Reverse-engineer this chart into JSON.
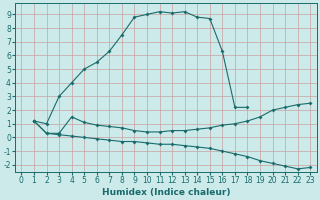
{
  "xlabel": "Humidex (Indice chaleur)",
  "xlim": [
    -0.5,
    23.5
  ],
  "ylim": [
    -2.5,
    9.8
  ],
  "bg_color": "#cceaea",
  "grid_color": "#aacccc",
  "line_color": "#1a6b6b",
  "line1_x": [
    1,
    2,
    3,
    4,
    5,
    6,
    7,
    8,
    9,
    10,
    11,
    12,
    13,
    14,
    15,
    16,
    17,
    18
  ],
  "line1_y": [
    1.2,
    1.0,
    3.0,
    4.0,
    5.0,
    5.5,
    6.3,
    7.5,
    8.8,
    9.0,
    9.2,
    9.1,
    9.2,
    8.8,
    8.7,
    6.3,
    2.2,
    2.2
  ],
  "line2_x": [
    1,
    2,
    3,
    4,
    5,
    6,
    7,
    8,
    9,
    10,
    11,
    12,
    13,
    14,
    15,
    16,
    17,
    18,
    19,
    20,
    21,
    22,
    23
  ],
  "line2_y": [
    1.2,
    0.3,
    0.3,
    1.5,
    1.1,
    0.9,
    0.8,
    0.7,
    0.5,
    0.4,
    0.4,
    0.5,
    0.5,
    0.6,
    0.7,
    0.9,
    1.0,
    1.2,
    1.5,
    2.0,
    2.2,
    2.4,
    2.5
  ],
  "line3_x": [
    1,
    2,
    3,
    4,
    5,
    6,
    7,
    8,
    9,
    10,
    11,
    12,
    13,
    14,
    15,
    16,
    17,
    18,
    19,
    20,
    21,
    22,
    23
  ],
  "line3_y": [
    1.2,
    0.3,
    0.2,
    0.1,
    0.0,
    -0.1,
    -0.2,
    -0.3,
    -0.3,
    -0.4,
    -0.5,
    -0.5,
    -0.6,
    -0.7,
    -0.8,
    -1.0,
    -1.2,
    -1.4,
    -1.7,
    -1.9,
    -2.1,
    -2.3,
    -2.2
  ],
  "xtick_labels": [
    "0",
    "1",
    "2",
    "3",
    "4",
    "5",
    "6",
    "7",
    "8",
    "9",
    "10",
    "11",
    "12",
    "13",
    "14",
    "15",
    "16",
    "17",
    "18",
    "19",
    "20",
    "21",
    "22",
    "23"
  ],
  "ytick_vals": [
    -2,
    -1,
    0,
    1,
    2,
    3,
    4,
    5,
    6,
    7,
    8,
    9
  ],
  "tick_fontsize": 5.5,
  "label_fontsize": 6.5
}
